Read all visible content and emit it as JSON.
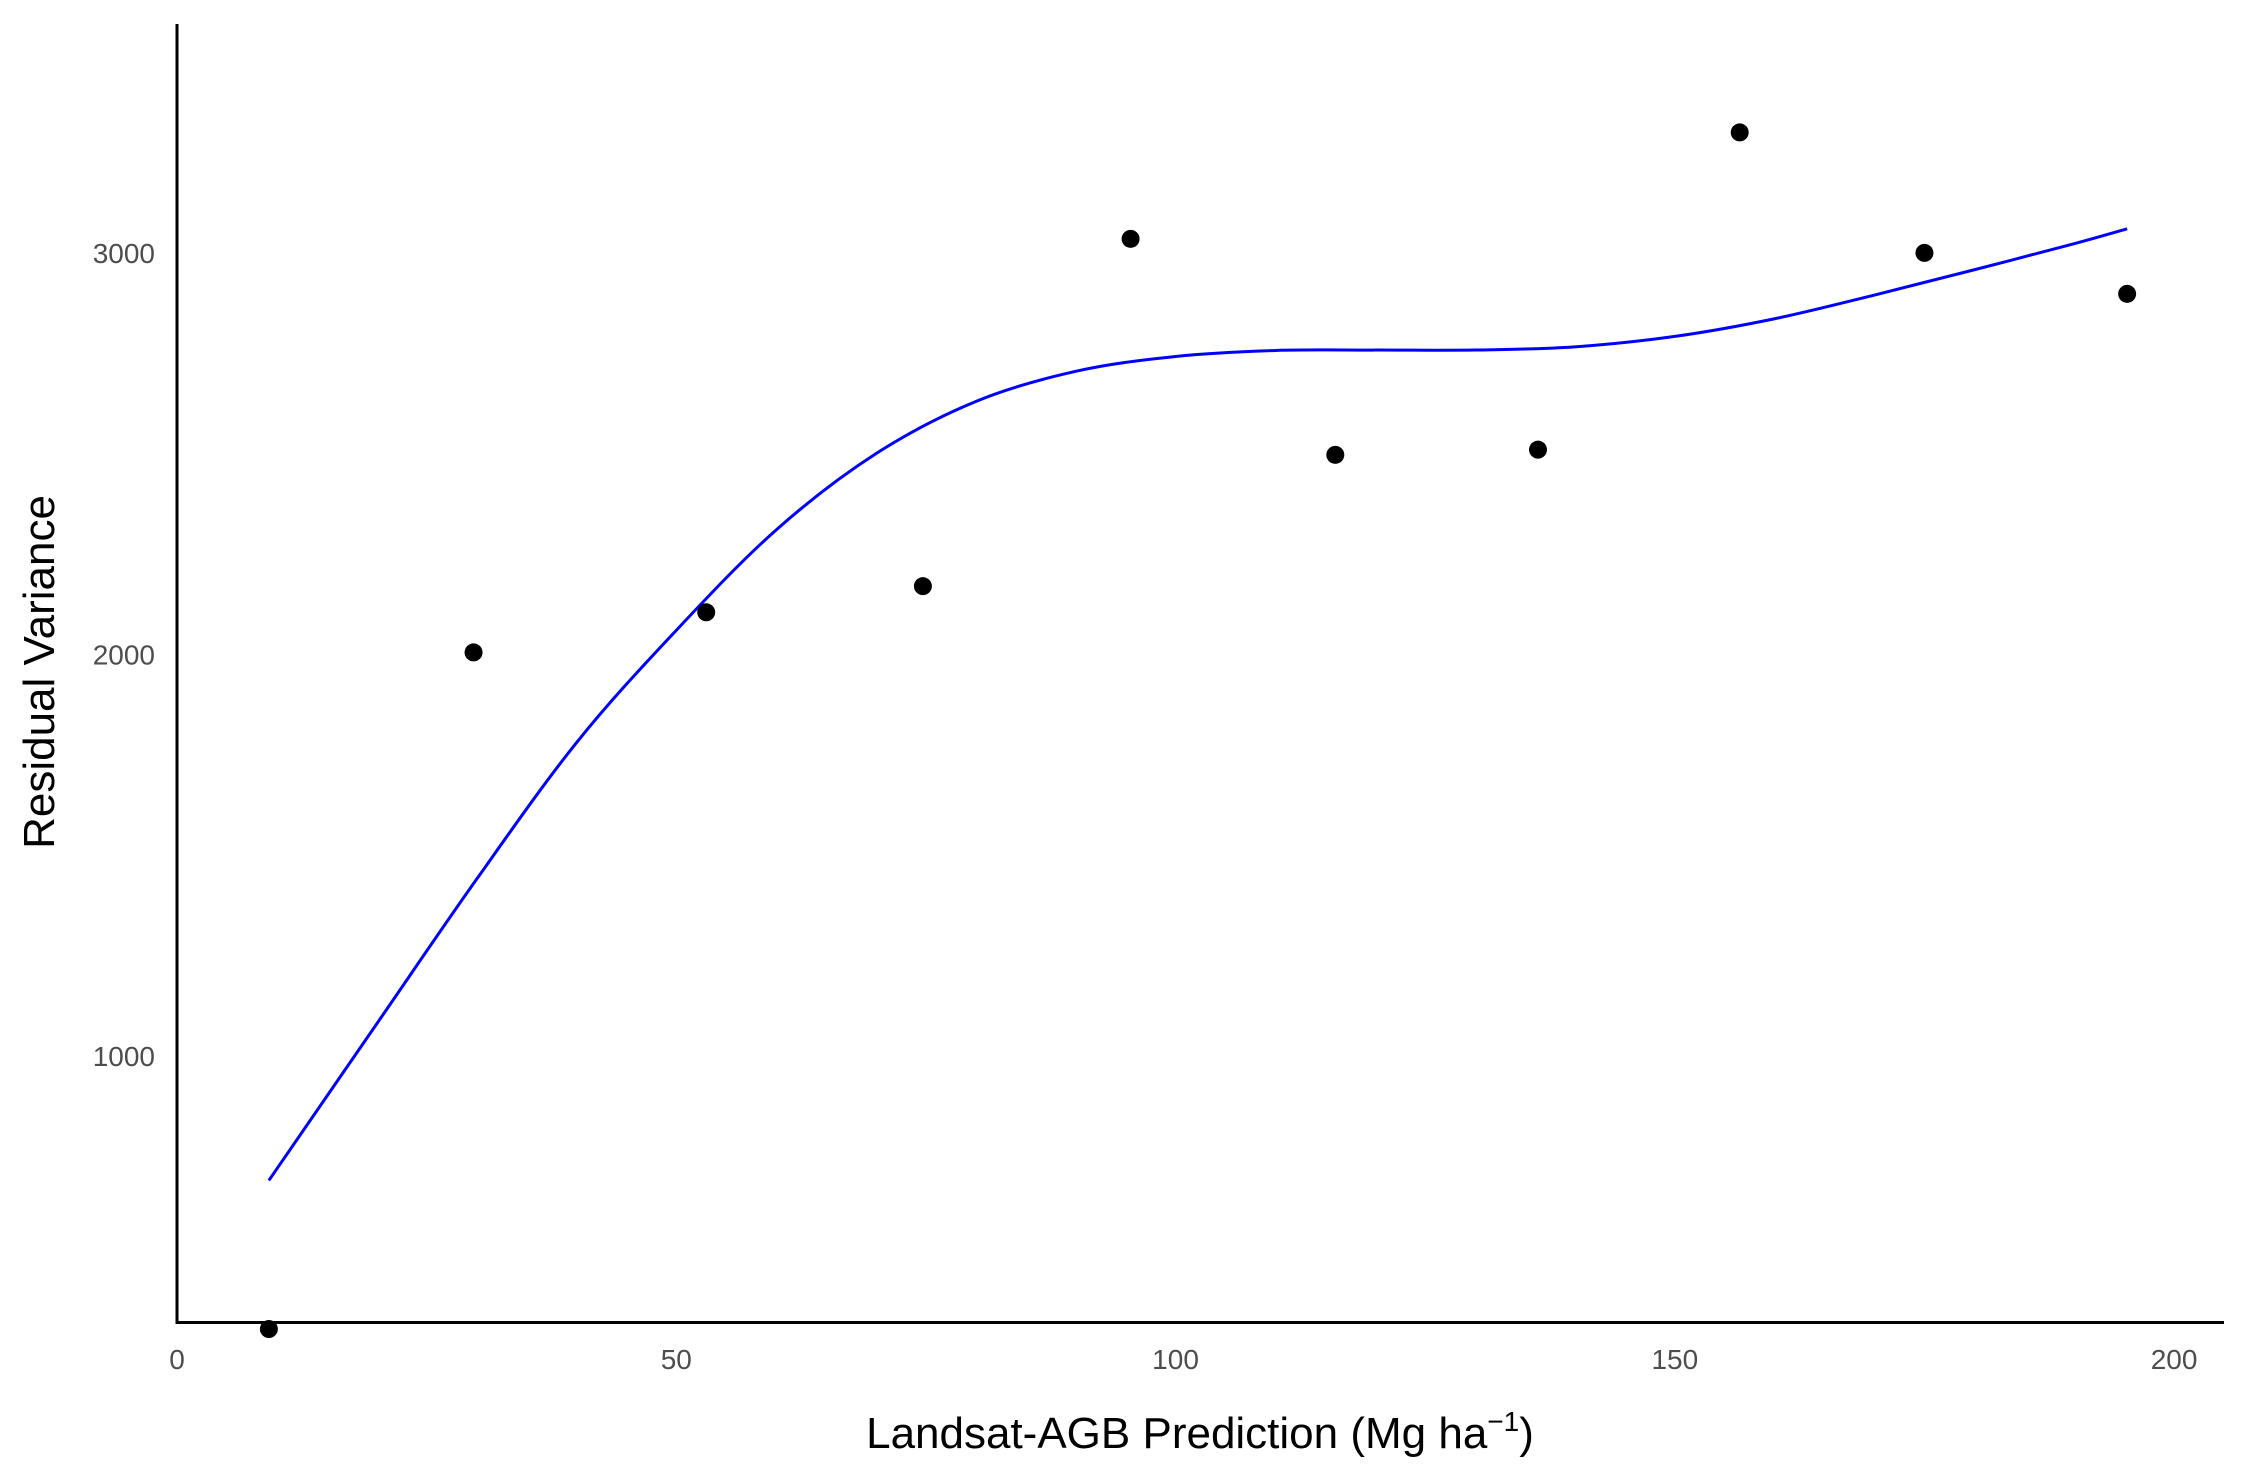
{
  "chart_data": {
    "type": "scatter",
    "title": "",
    "xlabel": "Landsat-AGB Prediction (Mg ha",
    "xlabel_superscript": "−1",
    "xlabel_suffix": ")",
    "ylabel": "Residual Variance",
    "xlim": [
      0,
      205
    ],
    "ylim": [
      340,
      3570
    ],
    "x_ticks": [
      0,
      50,
      100,
      150,
      200
    ],
    "x_tick_labels": [
      "0",
      "50",
      "100",
      "150",
      "200"
    ],
    "y_ticks": [
      1000,
      2000,
      3000
    ],
    "y_tick_labels": [
      "1000",
      "2000",
      "3000"
    ],
    "grid": false,
    "legend": "none",
    "colors": {
      "points": "#000000",
      "trend": "#0000ff",
      "axis": "#000000",
      "tick_label": "#4d4d4d"
    },
    "series": [
      {
        "kind": "points",
        "x": [
          9.2,
          29.7,
          53.0,
          74.7,
          95.5,
          116.0,
          136.3,
          156.5,
          175.0,
          195.3
        ],
        "y": [
          320,
          2005,
          2105,
          2170,
          3035,
          2497,
          2510,
          3300,
          3000,
          2898
        ]
      },
      {
        "kind": "smooth_line",
        "x": [
          9.2,
          20,
          30,
          40,
          50,
          60,
          70,
          80,
          90,
          100,
          110,
          120,
          130,
          140,
          150,
          160,
          170,
          180,
          190,
          195.3
        ],
        "y": [
          690,
          1080,
          1440,
          1780,
          2060,
          2310,
          2500,
          2630,
          2705,
          2742,
          2757,
          2758,
          2758,
          2766,
          2792,
          2836,
          2895,
          2958,
          3023,
          3060
        ]
      }
    ]
  }
}
